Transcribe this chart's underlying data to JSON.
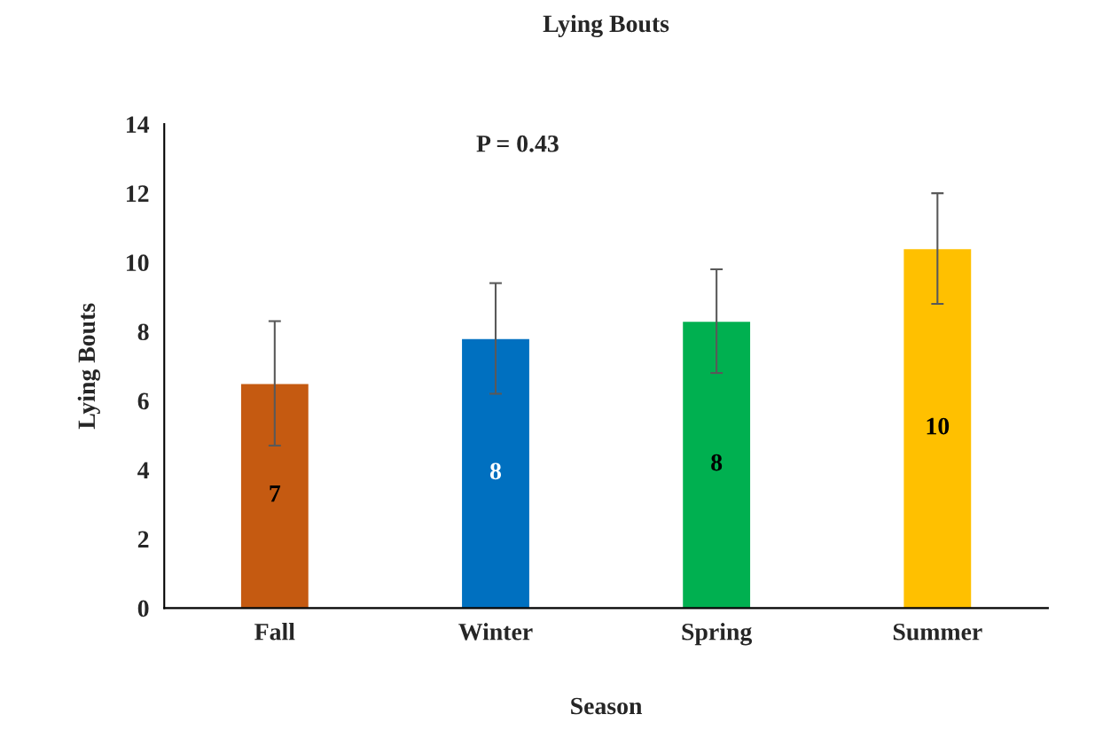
{
  "chart_data": {
    "type": "bar",
    "title": "Lying Bouts",
    "xlabel": "Season",
    "ylabel": "Lying Bouts",
    "categories": [
      "Fall",
      "Winter",
      "Spring",
      "Summer"
    ],
    "values": [
      6.5,
      7.8,
      8.3,
      10.4
    ],
    "colors": [
      "#c55a11",
      "#0070c0",
      "#00b050",
      "#ffc000"
    ],
    "errors": [
      1.8,
      1.6,
      1.5,
      1.6
    ],
    "value_labels": [
      "7",
      "8",
      "8",
      "10"
    ],
    "annotations": [
      "P = 0.43"
    ],
    "ylim": [
      0,
      14
    ],
    "yticks": [
      0,
      2,
      4,
      6,
      8,
      10,
      12,
      14
    ],
    "grid": false,
    "legend": false
  }
}
